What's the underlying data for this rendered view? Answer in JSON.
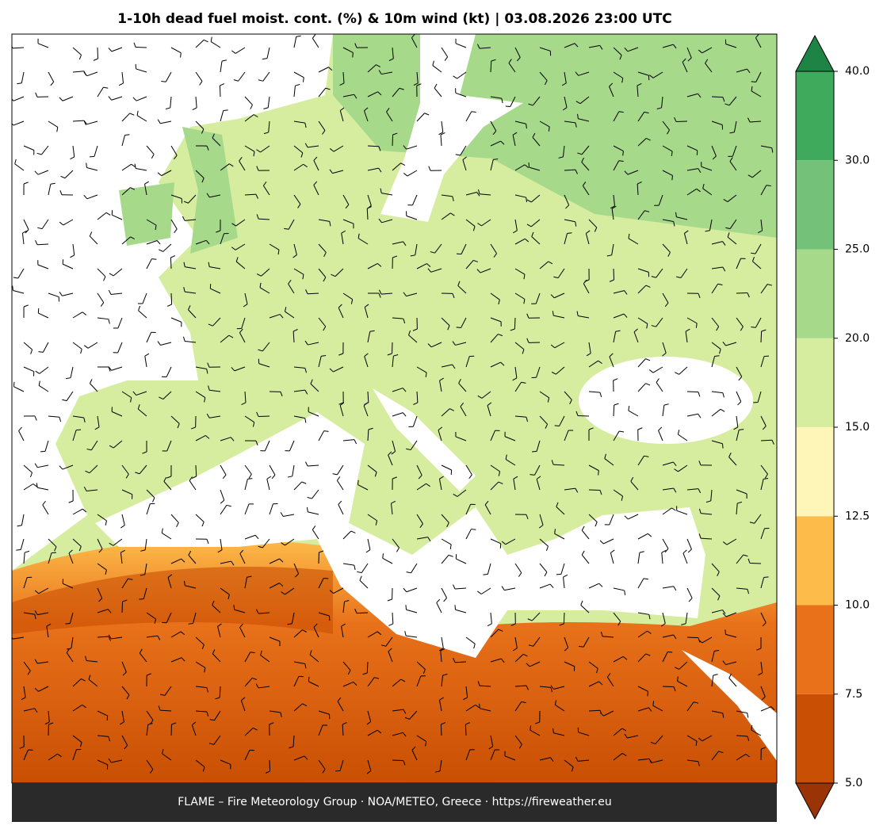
{
  "header": {
    "title": "1-10h dead fuel moist. cont. (%) & 10m wind (kt)  |  03.08.2026 23:00 UTC"
  },
  "colorbar": {
    "ticks": [
      {
        "value": 5,
        "label": "5.0"
      },
      {
        "value": 7.5,
        "label": "7.5"
      },
      {
        "value": 10,
        "label": "10.0"
      },
      {
        "value": 12.5,
        "label": "12.5"
      },
      {
        "value": 15,
        "label": "15.0"
      },
      {
        "value": 20,
        "label": "20.0"
      },
      {
        "value": 25,
        "label": "25.0"
      },
      {
        "value": 30,
        "label": "30.0"
      },
      {
        "value": 40,
        "label": "40.0"
      }
    ],
    "colors": [
      "#c94f04",
      "#e8711a",
      "#fdbb4a",
      "#fef5b8",
      "#d6eda0",
      "#a7d98a",
      "#74c27a",
      "#3faa5c"
    ],
    "under_color": "#9a3407",
    "over_color": "#1e8445"
  },
  "footer": {
    "text": "FLAME – Fire Meteorology Group · NOA/METEO, Greece · https://fireweather.eu"
  }
}
